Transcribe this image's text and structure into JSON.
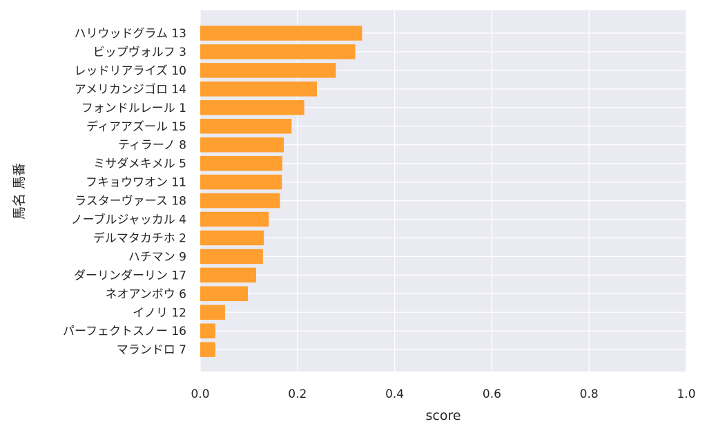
{
  "chart_data": {
    "type": "bar",
    "orientation": "horizontal",
    "title": "",
    "xlabel": "score",
    "ylabel": "馬名 馬番",
    "xlim": [
      0,
      1.0
    ],
    "xticks": [
      "0.0",
      "0.2",
      "0.4",
      "0.6",
      "0.8",
      "1.0"
    ],
    "grid": true,
    "bar_color": "#ff9f2f",
    "plot_background": "#eaeaf2",
    "categories": [
      "ハリウッドグラム 13",
      "ビップヴォルフ 3",
      "レッドリアライズ 10",
      "アメリカンジゴロ 14",
      "フォンドルレール 1",
      "ディアアズール 15",
      "ティラーノ 8",
      "ミサダメキメル 5",
      "フキョウワオン 11",
      "ラスターヴァース 18",
      "ノーブルジャッカル 4",
      "デルマタカチホ 2",
      "ハチマン 9",
      "ダーリンダーリン 17",
      "ネオアンボウ 6",
      "イノリ 12",
      "パーフェクトスノー 16",
      "マランドロ 7"
    ],
    "values": [
      0.333,
      0.319,
      0.279,
      0.24,
      0.214,
      0.188,
      0.172,
      0.169,
      0.168,
      0.164,
      0.141,
      0.131,
      0.129,
      0.115,
      0.098,
      0.051,
      0.031,
      0.031
    ]
  }
}
